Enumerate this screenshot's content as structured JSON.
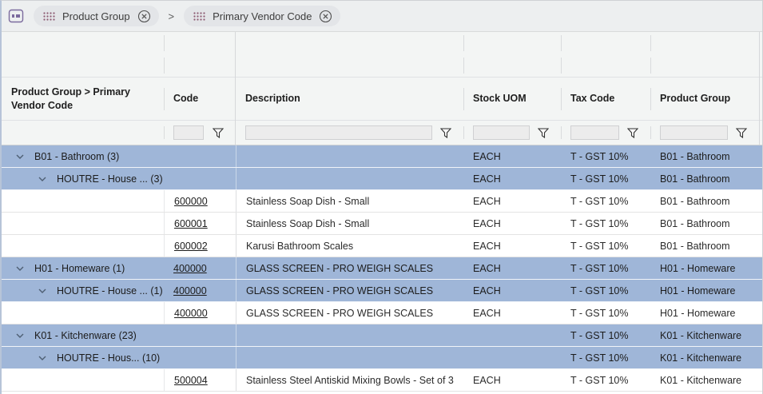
{
  "toolbar": {
    "chips": [
      {
        "label": "Product Group"
      },
      {
        "label": "Primary Vendor Code"
      }
    ],
    "chip_separator": ">"
  },
  "header": {
    "group_column": "Product Group > Primary Vendor Code",
    "columns": [
      "Code",
      "Description",
      "Stock UOM",
      "Tax Code",
      "Product Group"
    ]
  },
  "filter_row": {
    "values": [
      "",
      "",
      "",
      "",
      ""
    ]
  },
  "colors": {
    "group_row_blue": "#9fb6d8",
    "panel_icon_purple": "#7b6a9d",
    "chip_dots_plum": "#8d5a72"
  },
  "rows": [
    {
      "type": "group",
      "level": 1,
      "label": "B01 - Bathroom (3)",
      "code": "",
      "description": "",
      "uom": "EACH",
      "tax": "T - GST 10%",
      "group": "B01 - Bathroom"
    },
    {
      "type": "group",
      "level": 2,
      "label": "HOUTRE - House ... (3)",
      "code": "",
      "description": "",
      "uom": "EACH",
      "tax": "T - GST 10%",
      "group": "B01 - Bathroom"
    },
    {
      "type": "data",
      "level": 0,
      "label": "",
      "code": "600000",
      "description": "Stainless Soap Dish - Small",
      "uom": "EACH",
      "tax": "T - GST 10%",
      "group": "B01 - Bathroom"
    },
    {
      "type": "data",
      "level": 0,
      "label": "",
      "code": "600001",
      "description": "Stainless Soap Dish - Small",
      "uom": "EACH",
      "tax": "T - GST 10%",
      "group": "B01 - Bathroom"
    },
    {
      "type": "data",
      "level": 0,
      "label": "",
      "code": "600002",
      "description": "Karusi Bathroom Scales",
      "uom": "EACH",
      "tax": "T - GST 10%",
      "group": "B01 - Bathroom"
    },
    {
      "type": "group",
      "level": 1,
      "label": "H01 - Homeware (1)",
      "code": "400000",
      "description": "GLASS SCREEN - PRO WEIGH SCALES",
      "uom": "EACH",
      "tax": "T - GST 10%",
      "group": "H01 - Homeware"
    },
    {
      "type": "group",
      "level": 2,
      "label": "HOUTRE - House ... (1)",
      "code": "400000",
      "description": "GLASS SCREEN - PRO WEIGH SCALES",
      "uom": "EACH",
      "tax": "T - GST 10%",
      "group": "H01 - Homeware"
    },
    {
      "type": "data",
      "level": 0,
      "label": "",
      "code": "400000",
      "description": "GLASS SCREEN - PRO WEIGH SCALES",
      "uom": "EACH",
      "tax": "T - GST 10%",
      "group": "H01 - Homeware"
    },
    {
      "type": "group",
      "level": 1,
      "label": "K01 - Kitchenware (23)",
      "code": "",
      "description": "",
      "uom": "",
      "tax": "T - GST 10%",
      "group": "K01 - Kitchenware"
    },
    {
      "type": "group",
      "level": 2,
      "label": "HOUTRE - Hous...  (10)",
      "code": "",
      "description": "",
      "uom": "",
      "tax": "T - GST 10%",
      "group": "K01 - Kitchenware"
    },
    {
      "type": "data",
      "level": 0,
      "label": "",
      "code": "500004",
      "description": "Stainless Steel Antiskid Mixing Bowls - Set of 3",
      "uom": "EACH",
      "tax": "T - GST 10%",
      "group": "K01 - Kitchenware"
    }
  ]
}
